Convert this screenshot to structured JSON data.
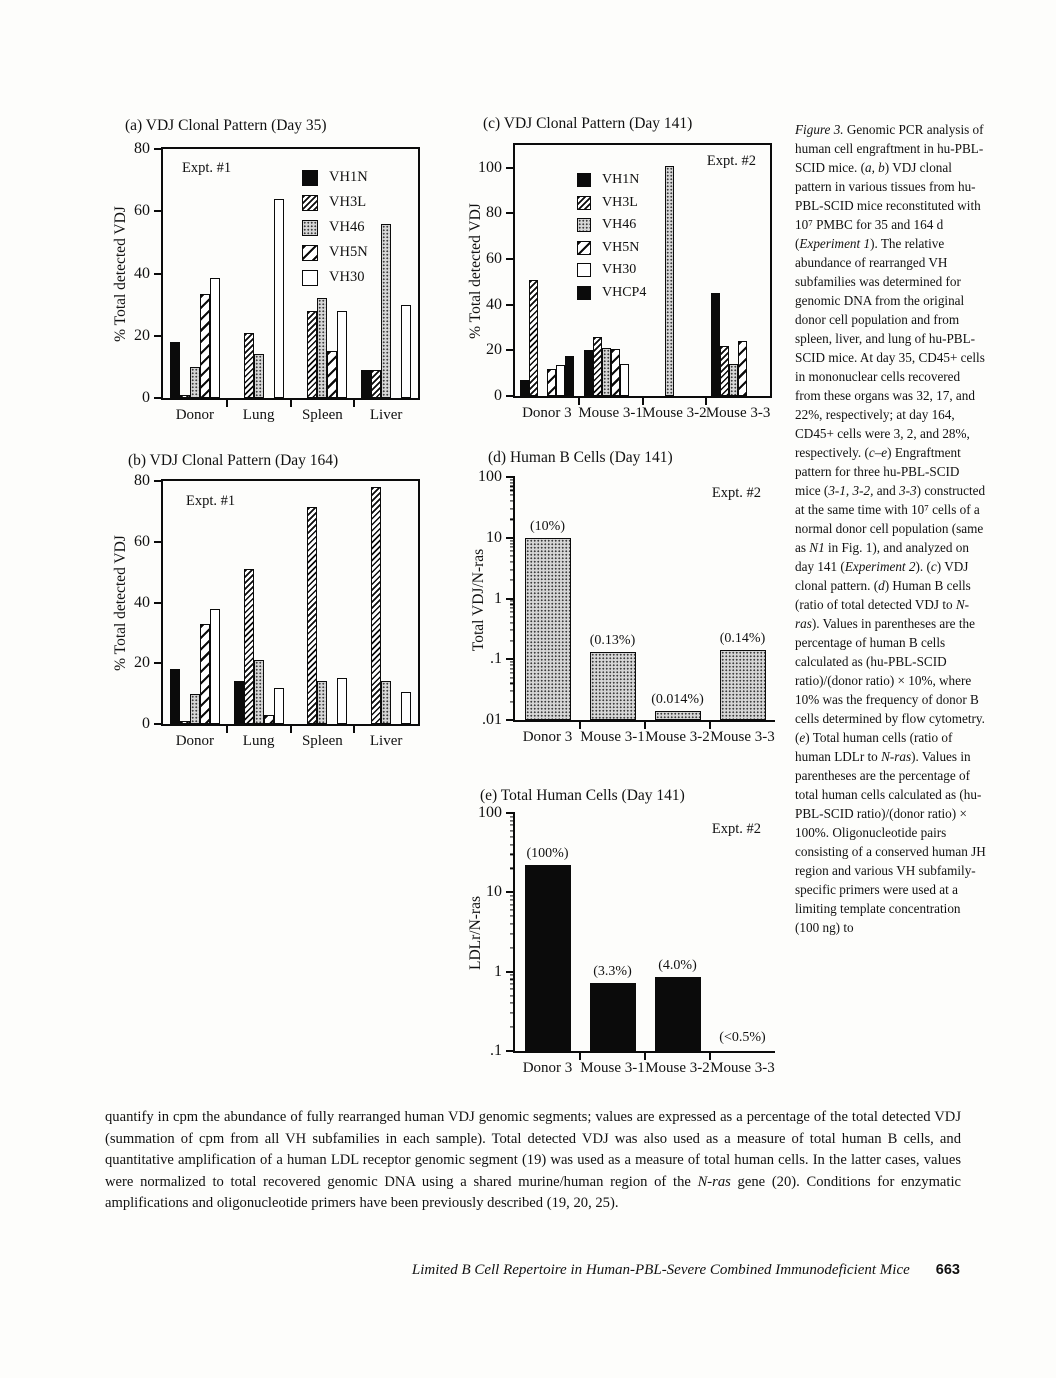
{
  "page": {
    "footer": {
      "title": "Limited B Cell Repertoire in Human-PBL-Severe Combined Immunodeficient Mice",
      "page_number": "663"
    }
  },
  "figure_caption": {
    "segments": [
      {
        "t": "Figure 3.",
        "i": true
      },
      {
        "t": " Genomic PCR analysis of human cell engraftment in hu-PBL-SCID mice. (",
        "i": false
      },
      {
        "t": "a, b",
        "i": true
      },
      {
        "t": ") VDJ clonal pattern in various tissues from hu-PBL-SCID mice reconstituted with 10⁷ PMBC for 35 and 164 d (",
        "i": false
      },
      {
        "t": "Experiment 1",
        "i": true
      },
      {
        "t": "). The relative abundance of rearranged VH subfamilies was determined for genomic DNA from the original donor cell population and from spleen, liver, and lung of hu-PBL-SCID mice. At day 35, CD45+ cells in mononuclear cells recovered from these organs was 32, 17, and 22%, respectively; at day 164, CD45+ cells were 3, 2, and 28%, respectively. (",
        "i": false
      },
      {
        "t": "c–e",
        "i": true
      },
      {
        "t": ") Engraftment pattern for three hu-PBL-SCID mice (",
        "i": false
      },
      {
        "t": "3-1, 3-2,",
        "i": true
      },
      {
        "t": " and ",
        "i": false
      },
      {
        "t": "3-3",
        "i": true
      },
      {
        "t": ") constructed at the same time with 10⁷ cells of a normal donor cell population (same as ",
        "i": false
      },
      {
        "t": "N1",
        "i": true
      },
      {
        "t": " in Fig. 1), and analyzed on day 141 (",
        "i": false
      },
      {
        "t": "Experiment 2",
        "i": true
      },
      {
        "t": "). (",
        "i": false
      },
      {
        "t": "c",
        "i": true
      },
      {
        "t": ") VDJ clonal pattern. (",
        "i": false
      },
      {
        "t": "d",
        "i": true
      },
      {
        "t": ") Human B cells (ratio of total detected VDJ to ",
        "i": false
      },
      {
        "t": "N-ras",
        "i": true
      },
      {
        "t": "). Values in parentheses are the percentage of human B cells calculated as (hu-PBL-SCID ratio)/(donor ratio) × 10%, where 10% was the frequency of donor B cells determined by flow cytometry. (",
        "i": false
      },
      {
        "t": "e",
        "i": true
      },
      {
        "t": ") Total human cells (ratio of human LDLr to ",
        "i": false
      },
      {
        "t": "N-ras",
        "i": true
      },
      {
        "t": "). Values in parentheses are the percentage of total human cells calculated as (hu-PBL-SCID ratio)/(donor ratio) × 100%. Oligonucleotide pairs consisting of a conserved human JH region and various VH subfamily-specific primers were used at a limiting template concentration (100 ng) to",
        "i": false
      }
    ]
  },
  "bottom_paragraph": {
    "segments": [
      {
        "t": "quantify in cpm the abundance of fully rearranged human VDJ genomic segments; values are expressed as a percentage of the total detected VDJ (summation of cpm from all VH subfamilies in each sample). Total detected VDJ was also used as a measure of total human B cells, and quantitative amplification of a human LDL receptor genomic segment (19) was used as a measure of total human cells. In the latter cases, values were normalized to total recovered genomic DNA using a shared murine/human region of the ",
        "i": false
      },
      {
        "t": "N-ras",
        "i": true
      },
      {
        "t": " gene (20). Conditions for enzymatic amplifications and oligonucleotide primers have been previously described (19, 20, 25).",
        "i": false
      }
    ]
  },
  "chart_data": [
    {
      "id": "a",
      "type": "grouped-bar",
      "title": "(a) VDJ Clonal Pattern (Day 35)",
      "annotation": "Expt. #1",
      "ylabel": "% Total detected VDJ",
      "xlabel": "",
      "ylim": [
        0,
        80
      ],
      "yticks": [
        0,
        20,
        40,
        60,
        80
      ],
      "grid": false,
      "legend": true,
      "legend_position": "inside-top-right",
      "categories": [
        "Donor",
        "Lung",
        "Spleen",
        "Liver"
      ],
      "series": [
        {
          "name": "VH1N",
          "pattern": "solid",
          "values": [
            18,
            0,
            0,
            9
          ]
        },
        {
          "name": "VH3L",
          "pattern": "hatch-fine",
          "values": [
            1,
            21,
            28,
            9
          ]
        },
        {
          "name": "VH46",
          "pattern": "stipple",
          "values": [
            10,
            14,
            32,
            56
          ]
        },
        {
          "name": "VH5N",
          "pattern": "hatch-wide",
          "values": [
            33.5,
            0,
            15,
            0
          ]
        },
        {
          "name": "VH30",
          "pattern": "open",
          "values": [
            38.5,
            64,
            28,
            30
          ]
        }
      ]
    },
    {
      "id": "b",
      "type": "grouped-bar",
      "title": "(b) VDJ Clonal Pattern (Day 164)",
      "annotation": "Expt. #1",
      "ylabel": "% Total detected VDJ",
      "xlabel": "",
      "ylim": [
        0,
        80
      ],
      "yticks": [
        0,
        20,
        40,
        60,
        80
      ],
      "grid": false,
      "legend": false,
      "legend_position": "none",
      "categories": [
        "Donor",
        "Lung",
        "Spleen",
        "Liver"
      ],
      "series": [
        {
          "name": "VH1N",
          "pattern": "solid",
          "values": [
            18,
            14,
            0,
            0
          ]
        },
        {
          "name": "VH3L",
          "pattern": "hatch-fine",
          "values": [
            1,
            51,
            71.5,
            78
          ]
        },
        {
          "name": "VH46",
          "pattern": "stipple",
          "values": [
            10,
            21,
            14,
            14
          ]
        },
        {
          "name": "VH5N",
          "pattern": "hatch-wide",
          "values": [
            33,
            3,
            0,
            0
          ]
        },
        {
          "name": "VH30",
          "pattern": "open",
          "values": [
            38,
            12,
            15,
            10.5
          ]
        }
      ]
    },
    {
      "id": "c",
      "type": "grouped-bar",
      "title": "(c) VDJ Clonal Pattern (Day 141)",
      "annotation": "Expt. #2",
      "ylabel": "% Total detected VDJ",
      "xlabel": "",
      "ylim": [
        0,
        110
      ],
      "yticks": [
        0,
        20,
        40,
        60,
        80,
        100
      ],
      "grid": false,
      "legend": true,
      "legend_position": "inside-top-left",
      "categories": [
        "Donor 3",
        "Mouse 3-1",
        "Mouse 3-2",
        "Mouse 3-3"
      ],
      "series": [
        {
          "name": "VH1N",
          "pattern": "solid",
          "values": [
            7,
            20,
            0,
            45
          ]
        },
        {
          "name": "VH3L",
          "pattern": "hatch-fine",
          "values": [
            51,
            26,
            0,
            22
          ]
        },
        {
          "name": "VH46",
          "pattern": "stipple",
          "values": [
            0,
            21,
            101,
            14
          ]
        },
        {
          "name": "VH5N",
          "pattern": "hatch-wide",
          "values": [
            12,
            20.5,
            0,
            24
          ]
        },
        {
          "name": "VH30",
          "pattern": "open",
          "values": [
            13.5,
            14,
            0,
            0
          ]
        },
        {
          "name": "VHCP4",
          "pattern": "solid",
          "values": [
            17.5,
            0,
            0,
            0
          ]
        }
      ]
    },
    {
      "id": "d",
      "type": "log-bar",
      "title": "(d) Human B Cells (Day 141)",
      "annotation": "Expt. #2",
      "ylabel": "Total VDJ/N-ras",
      "xlabel": "",
      "ylim": [
        0.01,
        100
      ],
      "yticks": [
        {
          "label": ".01",
          "v": 0.01
        },
        {
          "label": ".1",
          "v": 0.1
        },
        {
          "label": "1",
          "v": 1
        },
        {
          "label": "10",
          "v": 10
        },
        {
          "label": "100",
          "v": 100
        }
      ],
      "grid": false,
      "legend": false,
      "pattern": "stipple",
      "categories": [
        "Donor 3",
        "Mouse 3-1",
        "Mouse 3-2",
        "Mouse 3-3"
      ],
      "values": [
        10,
        0.13,
        0.014,
        0.14
      ],
      "bar_labels": [
        "(10%)",
        "(0.13%)",
        "(0.014%)",
        "(0.14%)"
      ]
    },
    {
      "id": "e",
      "type": "log-bar",
      "title": "(e) Total Human Cells (Day 141)",
      "annotation": "Expt. #2",
      "ylabel": "LDLr/N-ras",
      "xlabel": "",
      "ylim": [
        0.1,
        100
      ],
      "yticks": [
        {
          "label": ".1",
          "v": 0.1
        },
        {
          "label": "1",
          "v": 1
        },
        {
          "label": "10",
          "v": 10
        },
        {
          "label": "100",
          "v": 100
        }
      ],
      "grid": false,
      "legend": false,
      "pattern": "solid",
      "categories": [
        "Donor 3",
        "Mouse 3-1",
        "Mouse 3-2",
        "Mouse 3-3"
      ],
      "values": [
        22,
        0.72,
        0.85,
        null
      ],
      "bar_labels": [
        "(100%)",
        "(3.3%)",
        "(4.0%)",
        "(<0.5%)"
      ]
    }
  ]
}
